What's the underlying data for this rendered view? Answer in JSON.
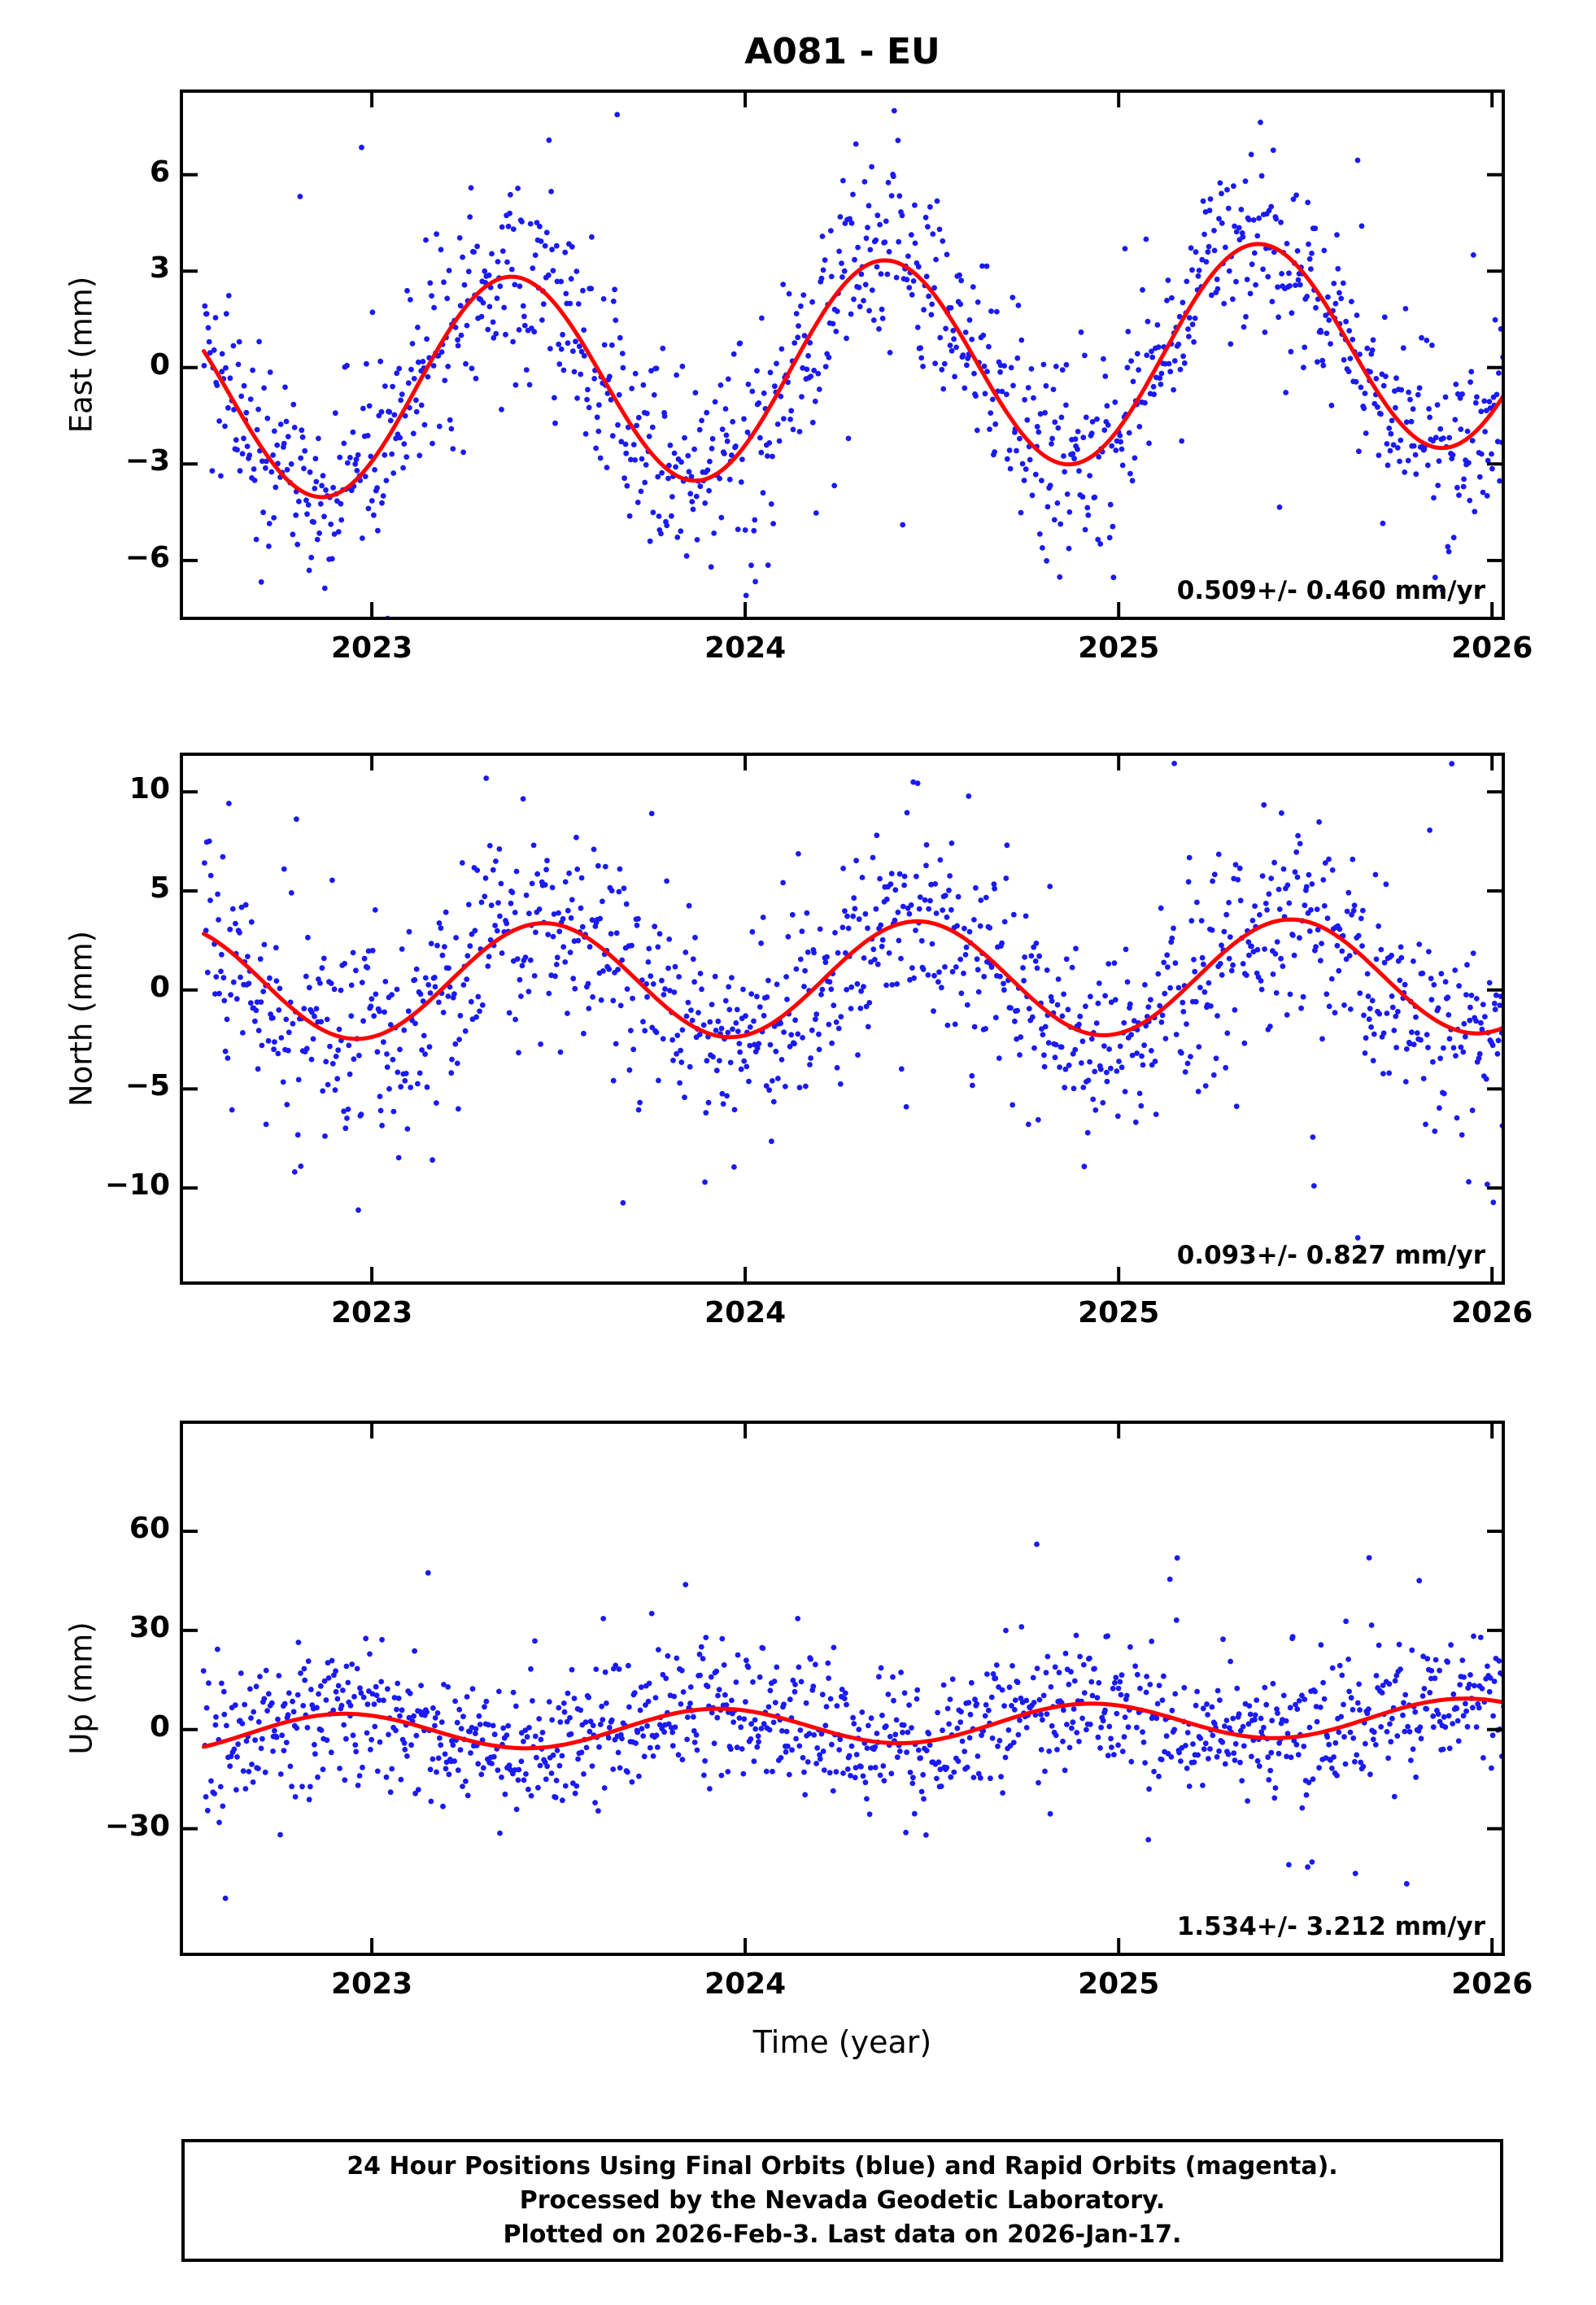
{
  "title": "A081 - EU",
  "xlabel": "Time (year)",
  "colors": {
    "points": "#1a1af2",
    "fit_line": "#ff0000",
    "frame": "#000000",
    "background": "#ffffff"
  },
  "footer": {
    "line1": "24 Hour Positions Using Final Orbits (blue) and Rapid Orbits (magenta).",
    "line2": "Processed by the Nevada Geodetic Laboratory.",
    "line3": "Plotted on 2026-Feb-3. Last data on 2026-Jan-17."
  },
  "chart_data": [
    {
      "type": "scatter",
      "ylabel": "East (mm)",
      "annotation": "0.509+/- 0.460 mm/yr",
      "trend_mm_per_yr": 0.509,
      "trend_sigma_mm_per_yr": 0.46,
      "xlim": [
        2022.49,
        2026.03
      ],
      "ylim": [
        -7.8,
        8.6
      ],
      "yticks": [
        -6,
        -3,
        0,
        3,
        6
      ],
      "xticks": [
        2023,
        2024,
        2025,
        2026
      ],
      "grid": false,
      "fit_model": {
        "mean": 0.0,
        "trend": 0.509,
        "t0": 2024.3,
        "annual_amp": 3.3,
        "annual_peak": 0.37
      },
      "scatter_model": {
        "n": 1250,
        "t_start": 2022.55,
        "t_end": 2026.04,
        "sigma": 1.5,
        "outlier_prob": 0.045,
        "outlier_scale": 2.6
      }
    },
    {
      "type": "scatter",
      "ylabel": "North (mm)",
      "annotation": "0.093+/- 0.827 mm/yr",
      "trend_mm_per_yr": 0.093,
      "trend_sigma_mm_per_yr": 0.827,
      "xlim": [
        2022.49,
        2026.03
      ],
      "ylim": [
        -14.8,
        11.9
      ],
      "yticks": [
        -10,
        -5,
        0,
        5,
        10
      ],
      "xticks": [
        2023,
        2024,
        2025,
        2026
      ],
      "grid": false,
      "fit_model": {
        "mean": 0.55,
        "trend": 0.093,
        "t0": 2024.3,
        "annual_amp": 2.9,
        "annual_peak": 0.46
      },
      "scatter_model": {
        "n": 1250,
        "t_start": 2022.55,
        "t_end": 2026.04,
        "sigma": 2.6,
        "outlier_prob": 0.05,
        "outlier_scale": 2.4
      }
    },
    {
      "type": "scatter",
      "ylabel": "Up (mm)",
      "annotation": "1.534+/- 3.212 mm/yr",
      "trend_mm_per_yr": 1.534,
      "trend_sigma_mm_per_yr": 3.212,
      "xlim": [
        2022.49,
        2026.03
      ],
      "ylim": [
        -68,
        93
      ],
      "yticks": [
        -30,
        0,
        30,
        60
      ],
      "xticks": [
        2023,
        2024,
        2025,
        2026
      ],
      "grid": false,
      "fit_model": {
        "mean": 1.3,
        "trend": 1.534,
        "t0": 2024.3,
        "annual_amp": 5.6,
        "annual_peak": 0.92
      },
      "scatter_model": {
        "n": 1250,
        "t_start": 2022.55,
        "t_end": 2026.04,
        "sigma": 10.5,
        "outlier_prob": 0.04,
        "outlier_scale": 2.6
      }
    }
  ]
}
